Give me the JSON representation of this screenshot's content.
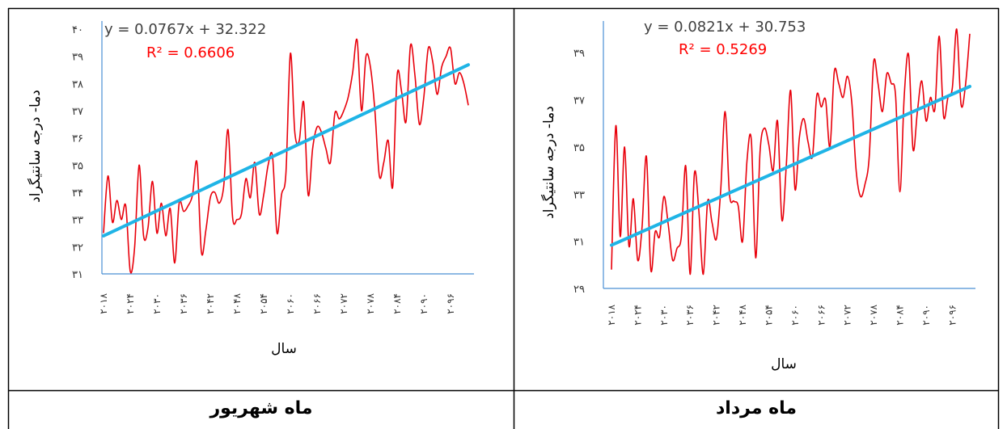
{
  "captions": {
    "left": "ماه شهریور",
    "right": "ماه مرداد"
  },
  "chart_data": [
    {
      "type": "line",
      "title": "",
      "xlabel": "سال",
      "ylabel": "دما- درجه سانتیگراد",
      "ylim": [
        31,
        40
      ],
      "y_ticks": [
        "۳۱",
        "۳۲",
        "۳۳",
        "۳۴",
        "۳۵",
        "۳۶",
        "۳۷",
        "۳۸",
        "۳۹",
        "۴۰"
      ],
      "x_range": [
        2018,
        2100
      ],
      "x_tick_labels": [
        "۲۰۱۸",
        "۲۰۲۴",
        "۲۰۳۰",
        "۲۰۳۶",
        "۲۰۴۲",
        "۲۰۴۸",
        "۲۰۵۴",
        "۲۰۶۰",
        "۲۰۶۶",
        "۲۰۷۲",
        "۲۰۷۸",
        "۲۰۸۴",
        "۲۰۹۰",
        "۲۰۹۶"
      ],
      "trendline_equation": "y = 0.0767x + 32.322",
      "r_squared": "R² = 0.6606",
      "trend": {
        "slope": 0.0767,
        "intercept": 32.322
      },
      "colors": {
        "series": "#e8000b",
        "trend": "#1fb4e6",
        "axis": "#4a8fd4"
      },
      "series": [
        {
          "x": [
            2018,
            2019,
            2020,
            2021,
            2022,
            2023,
            2024,
            2025,
            2026,
            2027,
            2028,
            2029,
            2030,
            2031,
            2032,
            2033,
            2034,
            2035,
            2036,
            2037,
            2038,
            2039,
            2040,
            2041,
            2042,
            2043,
            2044,
            2045,
            2046,
            2047,
            2048,
            2049,
            2050,
            2051,
            2052,
            2053,
            2054,
            2055,
            2056,
            2057,
            2058,
            2059,
            2060,
            2061,
            2062,
            2063,
            2064,
            2065,
            2066,
            2067,
            2068,
            2069,
            2070,
            2071,
            2072,
            2073,
            2074,
            2075,
            2076,
            2077,
            2078,
            2079,
            2080,
            2081,
            2082,
            2083,
            2084,
            2085,
            2086,
            2087,
            2088,
            2089,
            2090,
            2091,
            2092,
            2093,
            2094,
            2095,
            2096,
            2097,
            2098,
            2099,
            2100
          ],
          "y": [
            32.5,
            34.6,
            32.9,
            33.7,
            33.0,
            33.5,
            31.1,
            32.0,
            35.0,
            32.4,
            32.7,
            34.4,
            32.5,
            33.6,
            32.4,
            33.4,
            31.4,
            33.6,
            33.3,
            33.5,
            33.9,
            35.1,
            31.8,
            32.6,
            33.8,
            34.0,
            33.6,
            34.2,
            36.3,
            33.1,
            33.0,
            33.2,
            34.5,
            33.8,
            35.1,
            33.2,
            33.9,
            35.0,
            35.3,
            32.5,
            33.9,
            34.7,
            39.1,
            36.2,
            35.9,
            37.3,
            33.9,
            35.6,
            36.4,
            36.2,
            35.6,
            35.1,
            36.9,
            36.7,
            37.0,
            37.5,
            38.4,
            39.6,
            37.0,
            39.0,
            38.6,
            37.0,
            34.6,
            35.1,
            35.9,
            34.2,
            38.3,
            37.7,
            36.6,
            39.4,
            38.3,
            36.5,
            37.5,
            39.3,
            38.8,
            37.6,
            38.6,
            39.0,
            39.3,
            38.0,
            38.4,
            38.0,
            37.2
          ]
        }
      ]
    },
    {
      "type": "line",
      "title": "",
      "xlabel": "سال",
      "ylabel": "دما- درجه سانتیگراد",
      "ylim": [
        29,
        40
      ],
      "y_ticks": [
        "۲۹",
        "۳۱",
        "۳۳",
        "۳۵",
        "۳۷",
        "۳۹"
      ],
      "x_range": [
        2018,
        2100
      ],
      "x_tick_labels": [
        "۲۰۱۸",
        "۲۰۲۴",
        "۲۰۳۰",
        "۲۰۳۶",
        "۲۰۴۲",
        "۲۰۴۸",
        "۲۰۵۴",
        "۲۰۶۰",
        "۲۰۶۶",
        "۲۰۷۲",
        "۲۰۷۸",
        "۲۰۸۴",
        "۲۰۹۰",
        "۲۰۹۶"
      ],
      "trendline_equation": "y = 0.0821x + 30.753",
      "r_squared": "R² = 0.5269",
      "trend": {
        "slope": 0.0821,
        "intercept": 30.753
      },
      "colors": {
        "series": "#e8000b",
        "trend": "#1fb4e6",
        "axis": "#4a8fd4"
      },
      "series": [
        {
          "x": [
            2018,
            2019,
            2020,
            2021,
            2022,
            2023,
            2024,
            2025,
            2026,
            2027,
            2028,
            2029,
            2030,
            2031,
            2032,
            2033,
            2034,
            2035,
            2036,
            2037,
            2038,
            2039,
            2040,
            2041,
            2042,
            2043,
            2044,
            2045,
            2046,
            2047,
            2048,
            2049,
            2050,
            2051,
            2052,
            2053,
            2054,
            2055,
            2056,
            2057,
            2058,
            2059,
            2060,
            2061,
            2062,
            2063,
            2064,
            2065,
            2066,
            2067,
            2068,
            2069,
            2070,
            2071,
            2072,
            2073,
            2074,
            2075,
            2076,
            2077,
            2078,
            2079,
            2080,
            2081,
            2082,
            2083,
            2084,
            2085,
            2086,
            2087,
            2088,
            2089,
            2090,
            2091,
            2092,
            2093,
            2094,
            2095,
            2096,
            2097,
            2098,
            2099,
            2100
          ],
          "y": [
            29.8,
            35.9,
            31.2,
            35.0,
            30.8,
            32.8,
            30.2,
            31.6,
            34.6,
            29.8,
            31.4,
            31.2,
            32.9,
            31.7,
            30.2,
            30.7,
            31.2,
            34.2,
            29.6,
            33.9,
            32.3,
            29.6,
            32.7,
            31.8,
            31.1,
            33.2,
            36.5,
            33.0,
            32.7,
            32.5,
            31.0,
            34.4,
            35.3,
            30.3,
            34.8,
            35.8,
            35.1,
            34.0,
            36.1,
            31.9,
            34.2,
            37.4,
            33.2,
            35.4,
            36.2,
            35.2,
            34.6,
            37.2,
            36.7,
            37.0,
            35.0,
            38.2,
            37.7,
            37.1,
            38.0,
            36.9,
            34.0,
            32.9,
            33.4,
            34.6,
            38.6,
            37.7,
            36.5,
            38.1,
            37.7,
            37.2,
            33.1,
            37.2,
            38.9,
            34.9,
            36.5,
            37.8,
            36.1,
            37.1,
            36.6,
            39.7,
            36.3,
            37.1,
            37.5,
            40.0,
            36.8,
            37.6,
            39.8
          ]
        }
      ]
    }
  ]
}
